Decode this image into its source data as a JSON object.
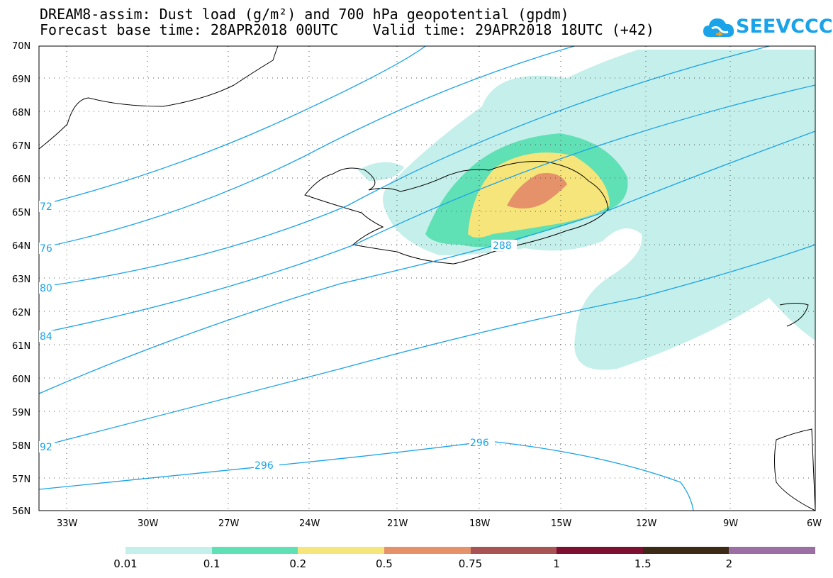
{
  "title_line1": "DREAM8-assim: Dust load (g/m²) and 700 hPa geopotential (gpdm)",
  "title_line2": "Forecast base time: 28APR2018 00UTC    Valid time: 29APR2018 18UTC (+42)",
  "logo": {
    "text": "SEEVCCC",
    "icon": "cloud-icon",
    "color": "#1aa3e8"
  },
  "map": {
    "lat_labels": [
      "70N",
      "69N",
      "68N",
      "67N",
      "66N",
      "65N",
      "64N",
      "63N",
      "62N",
      "61N",
      "60N",
      "59N",
      "58N",
      "57N",
      "56N"
    ],
    "lon_labels": [
      "33W",
      "30W",
      "27W",
      "24W",
      "21W",
      "18W",
      "15W",
      "12W",
      "9W",
      "6W"
    ],
    "isolines": [
      {
        "value": "72"
      },
      {
        "value": "76"
      },
      {
        "value": "80"
      },
      {
        "value": "84"
      },
      {
        "value": "288"
      },
      {
        "value": "92"
      },
      {
        "value": "296"
      },
      {
        "value": "296"
      }
    ],
    "isoline_color": "#1aa3e8"
  },
  "legend": {
    "labels": [
      "0.01",
      "0.1",
      "0.2",
      "0.5",
      "0.75",
      "1",
      "1.5",
      "2"
    ],
    "colors": [
      "#c4efea",
      "#5fe0b5",
      "#f5e57a",
      "#e5926b",
      "#a85454",
      "#7d1030",
      "#3c2a17",
      "#9c6fa4"
    ]
  }
}
